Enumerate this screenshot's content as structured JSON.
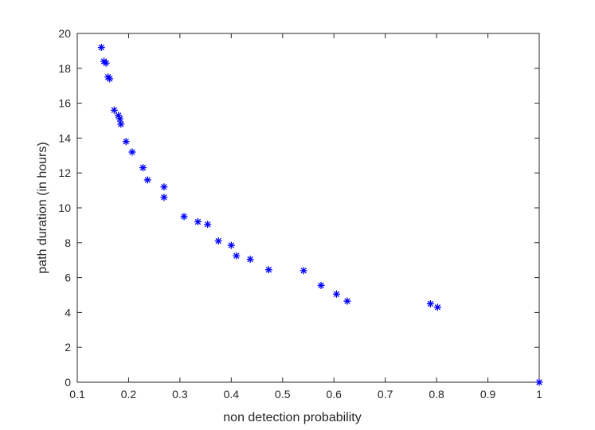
{
  "chart_data": {
    "type": "scatter",
    "title": "",
    "xlabel": "non detection probability",
    "ylabel": "path duration (in hours)",
    "xlim": [
      0.1,
      1
    ],
    "ylim": [
      0,
      20
    ],
    "x_ticks": [
      "0.1",
      "0.2",
      "0.3",
      "0.4",
      "0.5",
      "0.6",
      "0.7",
      "0.8",
      "0.9",
      "1"
    ],
    "y_ticks": [
      "0",
      "2",
      "4",
      "6",
      "8",
      "10",
      "12",
      "14",
      "16",
      "18",
      "20"
    ],
    "grid": false,
    "legend": "none",
    "marker": "asterisk",
    "marker_color": "#0000ff",
    "points": [
      {
        "x": 0.147,
        "y": 19.2
      },
      {
        "x": 0.152,
        "y": 18.4
      },
      {
        "x": 0.156,
        "y": 18.3
      },
      {
        "x": 0.16,
        "y": 17.5
      },
      {
        "x": 0.163,
        "y": 17.4
      },
      {
        "x": 0.172,
        "y": 15.6
      },
      {
        "x": 0.18,
        "y": 15.3
      },
      {
        "x": 0.183,
        "y": 15.1
      },
      {
        "x": 0.185,
        "y": 14.8
      },
      {
        "x": 0.195,
        "y": 13.8
      },
      {
        "x": 0.207,
        "y": 13.2
      },
      {
        "x": 0.228,
        "y": 12.3
      },
      {
        "x": 0.237,
        "y": 11.6
      },
      {
        "x": 0.269,
        "y": 11.2
      },
      {
        "x": 0.269,
        "y": 10.6
      },
      {
        "x": 0.308,
        "y": 9.5
      },
      {
        "x": 0.335,
        "y": 9.2
      },
      {
        "x": 0.354,
        "y": 9.05
      },
      {
        "x": 0.375,
        "y": 8.1
      },
      {
        "x": 0.4,
        "y": 7.85
      },
      {
        "x": 0.41,
        "y": 7.25
      },
      {
        "x": 0.437,
        "y": 7.05
      },
      {
        "x": 0.473,
        "y": 6.45
      },
      {
        "x": 0.541,
        "y": 6.4
      },
      {
        "x": 0.575,
        "y": 5.55
      },
      {
        "x": 0.605,
        "y": 5.05
      },
      {
        "x": 0.626,
        "y": 4.65
      },
      {
        "x": 0.788,
        "y": 4.5
      },
      {
        "x": 0.802,
        "y": 4.3
      },
      {
        "x": 1.0,
        "y": 0.0
      }
    ]
  }
}
